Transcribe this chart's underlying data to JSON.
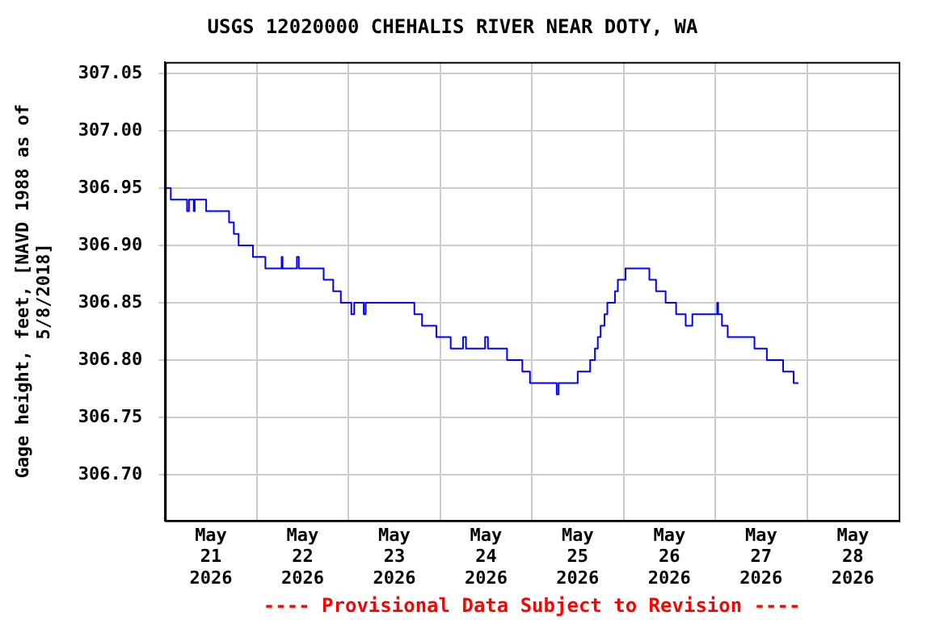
{
  "chart_data": {
    "type": "step",
    "title": "USGS 12020000 CHEHALIS RIVER NEAR DOTY, WA",
    "ylabel": "Gage height, feet, [NAVD 1988 as of 5/8/2018]",
    "annotations": [
      "---- Provisional Data Subject to Revision ----"
    ],
    "x": [
      "2026-05-21T00:00",
      "2026-05-21T01:30",
      "2026-05-21T05:45",
      "2026-05-21T06:15",
      "2026-05-21T07:30",
      "2026-05-21T07:45",
      "2026-05-21T10:45",
      "2026-05-21T16:45",
      "2026-05-21T18:00",
      "2026-05-21T19:15",
      "2026-05-21T23:00",
      "2026-05-22T02:15",
      "2026-05-22T06:30",
      "2026-05-22T06:45",
      "2026-05-22T10:30",
      "2026-05-22T11:00",
      "2026-05-22T17:30",
      "2026-05-22T20:00",
      "2026-05-22T22:00",
      "2026-05-23T00:45",
      "2026-05-23T01:30",
      "2026-05-23T04:00",
      "2026-05-23T04:30",
      "2026-05-23T17:15",
      "2026-05-23T19:15",
      "2026-05-23T23:00",
      "2026-05-24T02:45",
      "2026-05-24T06:00",
      "2026-05-24T06:45",
      "2026-05-24T11:45",
      "2026-05-24T12:30",
      "2026-05-24T17:30",
      "2026-05-24T21:30",
      "2026-05-24T23:30",
      "2026-05-25T06:30",
      "2026-05-25T07:00",
      "2026-05-25T12:00",
      "2026-05-25T15:15",
      "2026-05-25T16:30",
      "2026-05-25T17:15",
      "2026-05-25T18:00",
      "2026-05-25T19:00",
      "2026-05-25T19:45",
      "2026-05-25T21:45",
      "2026-05-25T22:30",
      "2026-05-26T00:30",
      "2026-05-26T06:45",
      "2026-05-26T08:30",
      "2026-05-26T11:00",
      "2026-05-26T13:45",
      "2026-05-26T16:15",
      "2026-05-26T18:00",
      "2026-05-27T00:30",
      "2026-05-27T00:45",
      "2026-05-27T01:45",
      "2026-05-27T03:15",
      "2026-05-27T10:15",
      "2026-05-27T13:30",
      "2026-05-27T17:45",
      "2026-05-27T20:30",
      "2026-05-27T21:45"
    ],
    "series": [
      {
        "color": "#0000ff",
        "values": [
          306.95,
          306.94,
          306.93,
          306.94,
          306.93,
          306.94,
          306.93,
          306.92,
          306.91,
          306.9,
          306.89,
          306.88,
          306.89,
          306.88,
          306.89,
          306.88,
          306.87,
          306.86,
          306.85,
          306.84,
          306.85,
          306.84,
          306.85,
          306.84,
          306.83,
          306.82,
          306.81,
          306.82,
          306.81,
          306.82,
          306.81,
          306.8,
          306.79,
          306.78,
          306.77,
          306.78,
          306.79,
          306.8,
          306.81,
          306.82,
          306.83,
          306.84,
          306.85,
          306.86,
          306.87,
          306.88,
          306.87,
          306.86,
          306.85,
          306.84,
          306.83,
          306.84,
          306.85,
          306.84,
          306.83,
          306.82,
          306.81,
          306.8,
          306.79,
          306.78,
          306.78
        ]
      }
    ],
    "xlim": [
      "2026-05-21T00:00",
      "2026-05-29T00:00"
    ],
    "xticks": [
      {
        "value": "2026-05-21T12:00",
        "label": "May\n21\n2026"
      },
      {
        "value": "2026-05-22T00:00",
        "label": null
      },
      {
        "value": "2026-05-22T12:00",
        "label": "May\n22\n2026"
      },
      {
        "value": "2026-05-23T00:00",
        "label": null
      },
      {
        "value": "2026-05-23T12:00",
        "label": "May\n23\n2026"
      },
      {
        "value": "2026-05-24T00:00",
        "label": null
      },
      {
        "value": "2026-05-24T12:00",
        "label": "May\n24\n2026"
      },
      {
        "value": "2026-05-25T00:00",
        "label": null
      },
      {
        "value": "2026-05-25T12:00",
        "label": "May\n25\n2026"
      },
      {
        "value": "2026-05-26T00:00",
        "label": null
      },
      {
        "value": "2026-05-26T12:00",
        "label": "May\n26\n2026"
      },
      {
        "value": "2026-05-27T00:00",
        "label": null
      },
      {
        "value": "2026-05-27T12:00",
        "label": "May\n27\n2026"
      },
      {
        "value": "2026-05-28T00:00",
        "label": null
      },
      {
        "value": "2026-05-28T12:00",
        "label": "May\n28\n2026"
      }
    ],
    "ylim": [
      306.66,
      307.06
    ],
    "yticks": [
      {
        "value": 306.7,
        "label": "306.70"
      },
      {
        "value": 306.75,
        "label": "306.75"
      },
      {
        "value": 306.8,
        "label": "306.80"
      },
      {
        "value": 306.85,
        "label": "306.85"
      },
      {
        "value": 306.9,
        "label": "306.90"
      },
      {
        "value": 306.95,
        "label": "306.95"
      },
      {
        "value": 307,
        "label": "307.00"
      },
      {
        "value": 307.05,
        "label": "307.05"
      }
    ],
    "grid": true,
    "legend": false,
    "marker": "none",
    "line_style": "solid"
  }
}
